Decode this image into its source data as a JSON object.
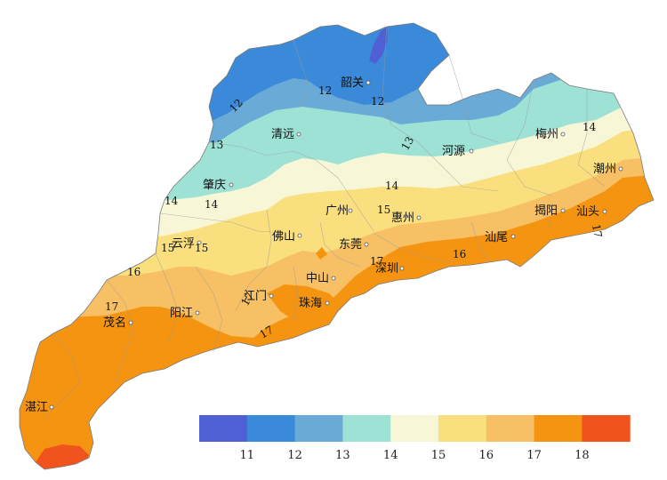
{
  "map": {
    "cities": [
      {
        "id": "shaoguan",
        "name": "韶关"
      },
      {
        "id": "qingyuan",
        "name": "清远"
      },
      {
        "id": "heyuan",
        "name": "河源"
      },
      {
        "id": "meizhou",
        "name": "梅州"
      },
      {
        "id": "chaozhou",
        "name": "潮州"
      },
      {
        "id": "zhaoqing",
        "name": "肇庆"
      },
      {
        "id": "guangzhou",
        "name": "广州"
      },
      {
        "id": "huizhou",
        "name": "惠州"
      },
      {
        "id": "jieyang",
        "name": "揭阳"
      },
      {
        "id": "shantou",
        "name": "汕头"
      },
      {
        "id": "yunfu",
        "name": "云浮"
      },
      {
        "id": "foshan",
        "name": "佛山"
      },
      {
        "id": "dongguan",
        "name": "东莞"
      },
      {
        "id": "shanwei",
        "name": "汕尾"
      },
      {
        "id": "shenzhen",
        "name": "深圳"
      },
      {
        "id": "zhongshan",
        "name": "中山"
      },
      {
        "id": "jiangmen",
        "name": "江门"
      },
      {
        "id": "zhuhai",
        "name": "珠海"
      },
      {
        "id": "maoming",
        "name": "茂名"
      },
      {
        "id": "yangjiang",
        "name": "阳江"
      },
      {
        "id": "zhanjiang",
        "name": "湛江"
      }
    ],
    "contour_labels": [
      "12",
      "12",
      "12",
      "13",
      "13",
      "14",
      "14",
      "14",
      "14",
      "15",
      "15",
      "15",
      "16",
      "16",
      "17",
      "17",
      "17",
      "17",
      "17"
    ],
    "legend": {
      "colors": [
        "#4f5fd4",
        "#3b8ad9",
        "#6aaad6",
        "#9ee2d6",
        "#f7f7d8",
        "#f9df7e",
        "#f7c064",
        "#f59411",
        "#f0531e"
      ],
      "ticks": [
        "11",
        "12",
        "13",
        "14",
        "15",
        "16",
        "17",
        "18"
      ]
    }
  }
}
